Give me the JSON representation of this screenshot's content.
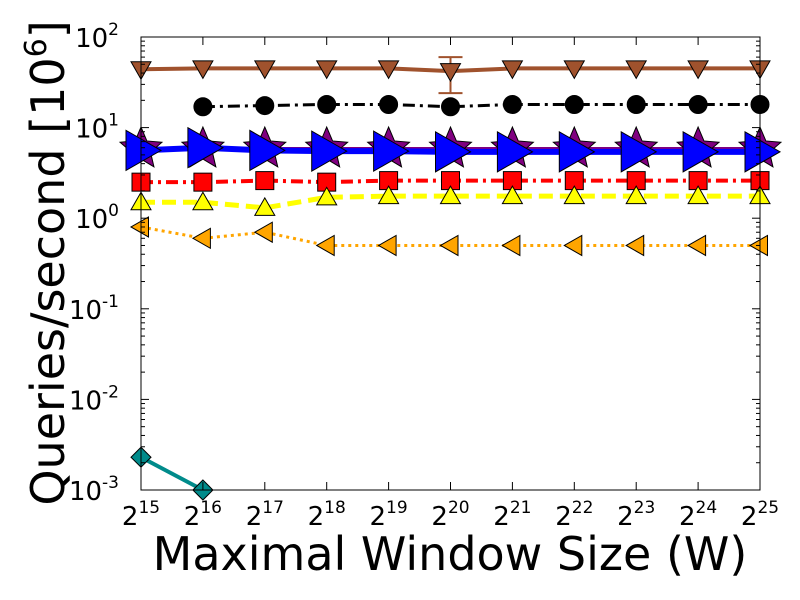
{
  "chart_data": {
    "type": "line",
    "xlabel": "Maximal Window Size (W)",
    "ylabel_text": "Queries/second ",
    "ylabel_unit_base": "[10",
    "ylabel_unit_exp": "6",
    "ylabel_unit_close": "]",
    "y_scale": "log",
    "x_scale": "log2",
    "xlim_exponent": [
      15,
      25
    ],
    "ylim": [
      0.001,
      100
    ],
    "x_ticks": [
      {
        "base": "2",
        "exp": "15"
      },
      {
        "base": "2",
        "exp": "16"
      },
      {
        "base": "2",
        "exp": "17"
      },
      {
        "base": "2",
        "exp": "18"
      },
      {
        "base": "2",
        "exp": "19"
      },
      {
        "base": "2",
        "exp": "20"
      },
      {
        "base": "2",
        "exp": "21"
      },
      {
        "base": "2",
        "exp": "22"
      },
      {
        "base": "2",
        "exp": "23"
      },
      {
        "base": "2",
        "exp": "24"
      },
      {
        "base": "2",
        "exp": "25"
      }
    ],
    "y_ticks": [
      {
        "value": 0.001,
        "base": "10",
        "exp": "-3"
      },
      {
        "value": 0.01,
        "base": "10",
        "exp": "-2"
      },
      {
        "value": 0.1,
        "base": "10",
        "exp": "-1"
      },
      {
        "value": 1,
        "base": "10",
        "exp": "0"
      },
      {
        "value": 10,
        "base": "10",
        "exp": "1"
      },
      {
        "value": 100,
        "base": "10",
        "exp": "2"
      }
    ],
    "grid": false,
    "series": [
      {
        "color": "#a0522d",
        "line_style": "solid",
        "line_width": 4,
        "marker": "triangle-down",
        "marker_color": "#a0522d",
        "x_exponent": [
          15,
          16,
          17,
          18,
          19,
          20,
          21,
          22,
          23,
          24,
          25
        ],
        "values": [
          44,
          45,
          45,
          45,
          45,
          42,
          45,
          45,
          45,
          45,
          45
        ],
        "error_bars": [
          null,
          null,
          null,
          null,
          null,
          [
            24,
            60
          ],
          null,
          null,
          null,
          null,
          null
        ]
      },
      {
        "color": "#000000",
        "line_style": "dashdot",
        "line_width": 3,
        "marker": "circle",
        "marker_color": "#000000",
        "x_exponent": [
          16,
          17,
          18,
          19,
          20,
          21,
          22,
          23,
          24,
          25
        ],
        "values": [
          17,
          17.5,
          18,
          18,
          17,
          18,
          18,
          18,
          18,
          18
        ]
      },
      {
        "color": "#800080",
        "line_style": "solid",
        "line_width": 4,
        "marker": "star",
        "marker_color": "#800080",
        "x_exponent": [
          15,
          16,
          17,
          18,
          19,
          20,
          21,
          22,
          23,
          24,
          25
        ],
        "values": [
          5.8,
          5.8,
          5.8,
          5.8,
          5.8,
          5.8,
          5.8,
          5.8,
          5.8,
          5.8,
          5.8
        ]
      },
      {
        "color": "#0000ff",
        "line_style": "solid",
        "line_width": 6,
        "marker": "triangle-right",
        "marker_color": "#0000ff",
        "x_exponent": [
          15,
          16,
          17,
          18,
          19,
          20,
          21,
          22,
          23,
          24,
          25
        ],
        "values": [
          5.6,
          6.0,
          5.6,
          5.5,
          5.5,
          5.4,
          5.4,
          5.4,
          5.4,
          5.4,
          5.4
        ]
      },
      {
        "color": "#ff0000",
        "line_style": "dashdot",
        "line_width": 4,
        "marker": "square",
        "marker_color": "#ff0000",
        "x_exponent": [
          15,
          16,
          17,
          18,
          19,
          20,
          21,
          22,
          23,
          24,
          25
        ],
        "values": [
          2.5,
          2.5,
          2.6,
          2.5,
          2.6,
          2.6,
          2.6,
          2.6,
          2.6,
          2.6,
          2.6
        ]
      },
      {
        "color": "#ffff00",
        "line_style": "dashed",
        "line_width": 5,
        "marker": "triangle-up",
        "marker_color": "#ffff00",
        "x_exponent": [
          15,
          16,
          17,
          18,
          19,
          20,
          21,
          22,
          23,
          24,
          25
        ],
        "values": [
          1.5,
          1.5,
          1.3,
          1.7,
          1.75,
          1.75,
          1.75,
          1.75,
          1.75,
          1.75,
          1.75
        ]
      },
      {
        "color": "#ffa500",
        "line_style": "dotted",
        "line_width": 3,
        "marker": "triangle-left",
        "marker_color": "#ffa500",
        "x_exponent": [
          15,
          16,
          17,
          18,
          19,
          20,
          21,
          22,
          23,
          24,
          25
        ],
        "values": [
          0.8,
          0.6,
          0.7,
          0.5,
          0.5,
          0.5,
          0.5,
          0.5,
          0.5,
          0.5,
          0.5
        ]
      },
      {
        "color": "#008b8b",
        "line_style": "solid",
        "line_width": 4,
        "marker": "diamond",
        "marker_color": "#008b8b",
        "x_exponent": [
          15,
          16
        ],
        "values": [
          0.0023,
          0.001
        ]
      }
    ]
  }
}
